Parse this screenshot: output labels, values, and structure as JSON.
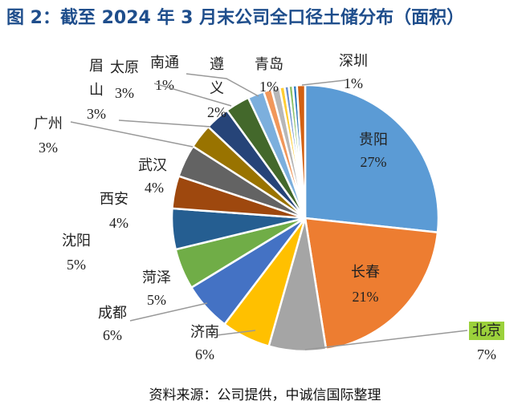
{
  "title": "图 2：截至 2024 年 3 月末公司全口径土储分布（面积）",
  "source": "资料来源：公司提供，中诚信国际整理",
  "chart_data": {
    "type": "pie",
    "title": "图 2：截至 2024 年 3 月末公司全口径土储分布（面积）",
    "unit": "%",
    "start": "top, clockwise",
    "highlight": {
      "label": "北京",
      "color": "#9bd13b"
    },
    "slices": [
      {
        "label": "贵阳",
        "value": 27,
        "text": "27%",
        "color": "#5b9bd5"
      },
      {
        "label": "长春",
        "value": 21,
        "text": "21%",
        "color": "#ed7d31"
      },
      {
        "label": "北京",
        "value": 7,
        "text": "7%",
        "color": "#a5a5a5"
      },
      {
        "label": "济南",
        "value": 6,
        "text": "6%",
        "color": "#ffc000"
      },
      {
        "label": "成都",
        "value": 6,
        "text": "6%",
        "color": "#4472c4"
      },
      {
        "label": "菏泽",
        "value": 5,
        "text": "5%",
        "color": "#70ad47"
      },
      {
        "label": "沈阳",
        "value": 5,
        "text": "5%",
        "color": "#255e91"
      },
      {
        "label": "西安",
        "value": 4,
        "text": "4%",
        "color": "#9e480e"
      },
      {
        "label": "武汉",
        "value": 4,
        "text": "4%",
        "color": "#636363"
      },
      {
        "label": "广州",
        "value": 3,
        "text": "3%",
        "color": "#997300"
      },
      {
        "label": "眉山",
        "value": 3,
        "text": "3%",
        "color": "#264478"
      },
      {
        "label": "太原",
        "value": 3,
        "text": "3%",
        "color": "#43682b"
      },
      {
        "label": "遵义",
        "value": 2,
        "text": "2%",
        "color": "#7cafdd"
      },
      {
        "label": "南通",
        "value": 1,
        "text": "1%",
        "color": "#f1975a"
      },
      {
        "label": "青岛",
        "value": 1,
        "text": "1%",
        "color": "#b7b7b7"
      },
      {
        "label": "",
        "value": 0.6,
        "text": "",
        "color": "#ffcd33"
      },
      {
        "label": "",
        "value": 0.5,
        "text": "",
        "color": "#698ed0"
      },
      {
        "label": "",
        "value": 0.5,
        "text": "",
        "color": "#8cc168"
      },
      {
        "label": "",
        "value": 0.5,
        "text": "",
        "color": "#327dc2"
      },
      {
        "label": "深圳",
        "value": 1,
        "text": "1%",
        "color": "#d26012"
      }
    ]
  }
}
